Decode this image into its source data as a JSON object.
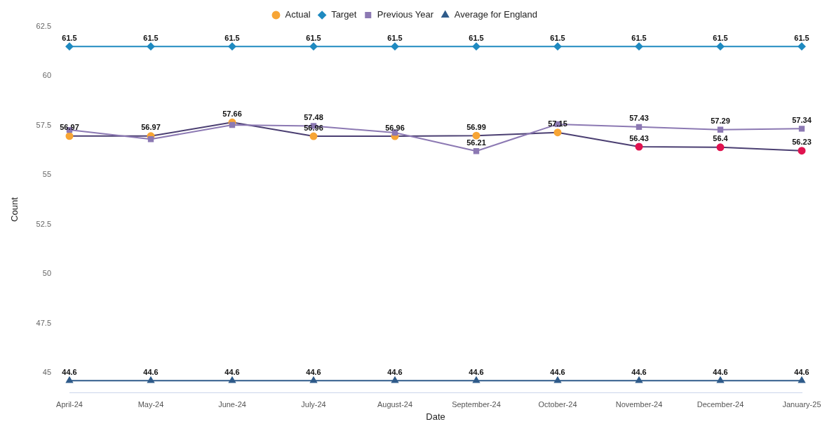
{
  "chart_data": {
    "type": "line",
    "xlabel": "Date",
    "ylabel": "Count",
    "legend": "top",
    "grid": false,
    "line_style": "solid",
    "categories": [
      "April-24",
      "May-24",
      "June-24",
      "July-24",
      "August-24",
      "September-24",
      "October-24",
      "November-24",
      "December-24",
      "January-25"
    ],
    "ylim": [
      44,
      62.5
    ],
    "yticks": [
      45,
      47.5,
      50,
      52.5,
      55,
      57.5,
      60,
      62.5
    ],
    "series": [
      {
        "name": "Actual",
        "color": "#4b3f72",
        "marker": "circle",
        "colors": [
          "#f7a535",
          "#f7a535",
          "#f7a535",
          "#f7a535",
          "#f7a535",
          "#f7a535",
          "#f7a535",
          "#e0134f",
          "#e0134f",
          "#e0134f"
        ],
        "values": [
          56.97,
          56.97,
          57.66,
          56.96,
          56.96,
          56.99,
          57.15,
          56.43,
          56.4,
          56.23
        ],
        "value_labels": [
          "56.97",
          "56.97",
          "57.66",
          "56.96",
          "56.96",
          "56.99",
          "57.15",
          "56.43",
          "56.4",
          "56.23"
        ]
      },
      {
        "name": "Target",
        "color": "#1f8ac0",
        "marker": "diamond",
        "values": [
          61.5,
          61.5,
          61.5,
          61.5,
          61.5,
          61.5,
          61.5,
          61.5,
          61.5,
          61.5
        ],
        "value_labels": [
          "61.5",
          "61.5",
          "61.5",
          "61.5",
          "61.5",
          "61.5",
          "61.5",
          "61.5",
          "61.5",
          "61.5"
        ]
      },
      {
        "name": "Previous Year",
        "color": "#8c79b3",
        "marker": "square",
        "values": [
          57.28,
          56.81,
          57.53,
          57.48,
          57.14,
          56.21,
          57.57,
          57.43,
          57.29,
          57.34
        ],
        "value_labels": [
          null,
          null,
          null,
          "57.48",
          null,
          "56.21",
          null,
          "57.43",
          "57.29",
          "57.34"
        ]
      },
      {
        "name": "Average for England",
        "color": "#2f5b8a",
        "marker": "triangle",
        "values": [
          44.6,
          44.6,
          44.6,
          44.6,
          44.6,
          44.6,
          44.6,
          44.6,
          44.6,
          44.6
        ],
        "value_labels": [
          "44.6",
          "44.6",
          "44.6",
          "44.6",
          "44.6",
          "44.6",
          "44.6",
          "44.6",
          "44.6",
          "44.6"
        ]
      }
    ]
  }
}
